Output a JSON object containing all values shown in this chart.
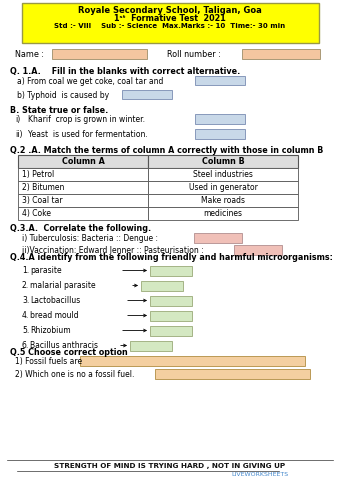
{
  "title_line1": "Royale Secondary School, Taligan, Goa",
  "title_line2": "1ˢᵗ  Formative Test  2021",
  "title_line3": "Std :- VIII    Sub :- Science  Max.Marks :- 10  Time:- 30 min",
  "header_bg": "#FFFF00",
  "input_box_color": "#F4C6A0",
  "input_box_light": "#D4E8C2",
  "input_box_blue": "#C8D8E8",
  "input_box_pink": "#F0C0B8",
  "bg_color": "#FFFFFF",
  "footer_text": "STRENGTH OF MIND IS TRYING HARD , NOT IN GIVING UP",
  "footer_site": "LIVEWORKSHEETS",
  "table_col_a": [
    "1) Petrol",
    "2) Bitumen",
    "3) Coal tar",
    "4) Coke"
  ],
  "table_col_b": [
    "Steel industries",
    "Used in generator",
    "Make roads",
    "medicines"
  ],
  "items": [
    "parasite",
    "malarial parasite",
    "Lactobacillus",
    "bread mould",
    "Rhizobium",
    "Bacillus anthracis"
  ]
}
